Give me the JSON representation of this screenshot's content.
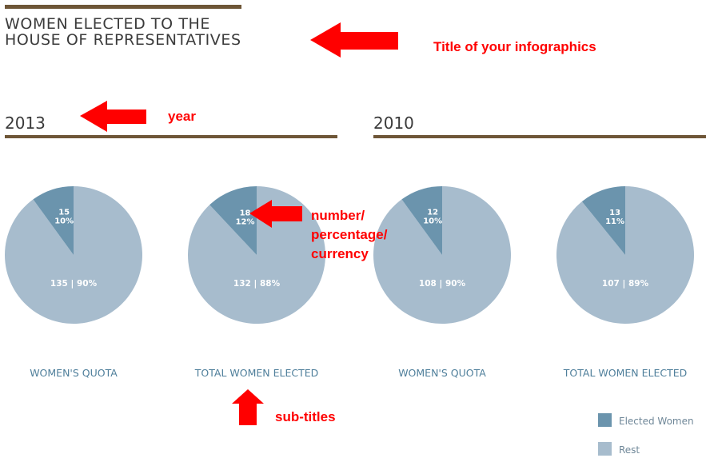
{
  "title_lines": [
    "WOMEN ELECTED TO THE",
    "HOUSE OF REPRESENTATIVES"
  ],
  "annotations": {
    "title": "Title of your infographics",
    "year": "year",
    "number": [
      "number/",
      "percentage/",
      "currency"
    ],
    "subtitles": "sub-titles"
  },
  "colors": {
    "elected": "#6b94ad",
    "rest": "#a7bccd",
    "rule": "#6e5637",
    "annotation": "#ff0000"
  },
  "chart_data": [
    {
      "type": "pie",
      "year": "2013",
      "title": "WOMEN'S QUOTA",
      "slices": [
        {
          "name": "Elected Women",
          "count": "15",
          "percent": "10%",
          "value": 15
        },
        {
          "name": "Rest",
          "label": "135 | 90%",
          "value": 135
        }
      ]
    },
    {
      "type": "pie",
      "year": "2013",
      "title": "TOTAL WOMEN ELECTED",
      "slices": [
        {
          "name": "Elected Women",
          "count": "18",
          "percent": "12%",
          "value": 18
        },
        {
          "name": "Rest",
          "label": "132 | 88%",
          "value": 132
        }
      ]
    },
    {
      "type": "pie",
      "year": "2010",
      "title": "WOMEN'S QUOTA",
      "slices": [
        {
          "name": "Elected Women",
          "count": "12",
          "percent": "10%",
          "value": 12
        },
        {
          "name": "Rest",
          "label": "108 | 90%",
          "value": 108
        }
      ]
    },
    {
      "type": "pie",
      "year": "2010",
      "title": "TOTAL WOMEN ELECTED",
      "slices": [
        {
          "name": "Elected Women",
          "count": "13",
          "percent": "11%",
          "value": 13
        },
        {
          "name": "Rest",
          "label": "107 | 89%",
          "value": 107
        }
      ]
    }
  ],
  "years": [
    "2013",
    "2010"
  ],
  "legend": {
    "items": [
      "Elected Women",
      "Rest"
    ],
    "placement": "bottom-right"
  }
}
